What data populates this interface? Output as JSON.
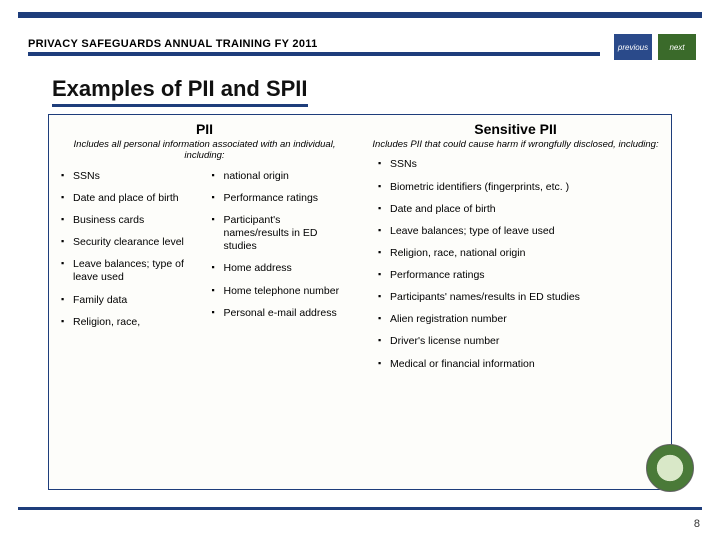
{
  "header": {
    "title": "PRIVACY SAFEGUARDS ANNUAL TRAINING FY 2011",
    "prev_label": "previous",
    "next_label": "next"
  },
  "slide": {
    "title": "Examples of PII and SPII",
    "page_number": "8"
  },
  "pii": {
    "title": "PII",
    "subtitle": "Includes all personal information associated with an individual, including:",
    "col1": [
      "SSNs",
      "Date and place of birth",
      "Business cards",
      "Security clearance level",
      "Leave balances; type of leave used",
      "Family data",
      "Religion, race,"
    ],
    "col2": [
      "national origin",
      "Performance ratings",
      "Participant's names/results in ED studies",
      "Home address",
      "Home telephone number",
      "Personal e-mail address"
    ]
  },
  "spii": {
    "title": "Sensitive PII",
    "subtitle": "Includes PII that could cause harm if wrongfully disclosed, including:",
    "items": [
      "SSNs",
      "Biometric identifiers (fingerprints, etc. )",
      "Date and place of birth",
      "Leave balances; type of leave used",
      "Religion, race, national origin",
      "Performance ratings",
      "Participants' names/results in ED studies",
      "Alien registration number",
      "Driver's license number",
      "Medical or financial information"
    ]
  }
}
